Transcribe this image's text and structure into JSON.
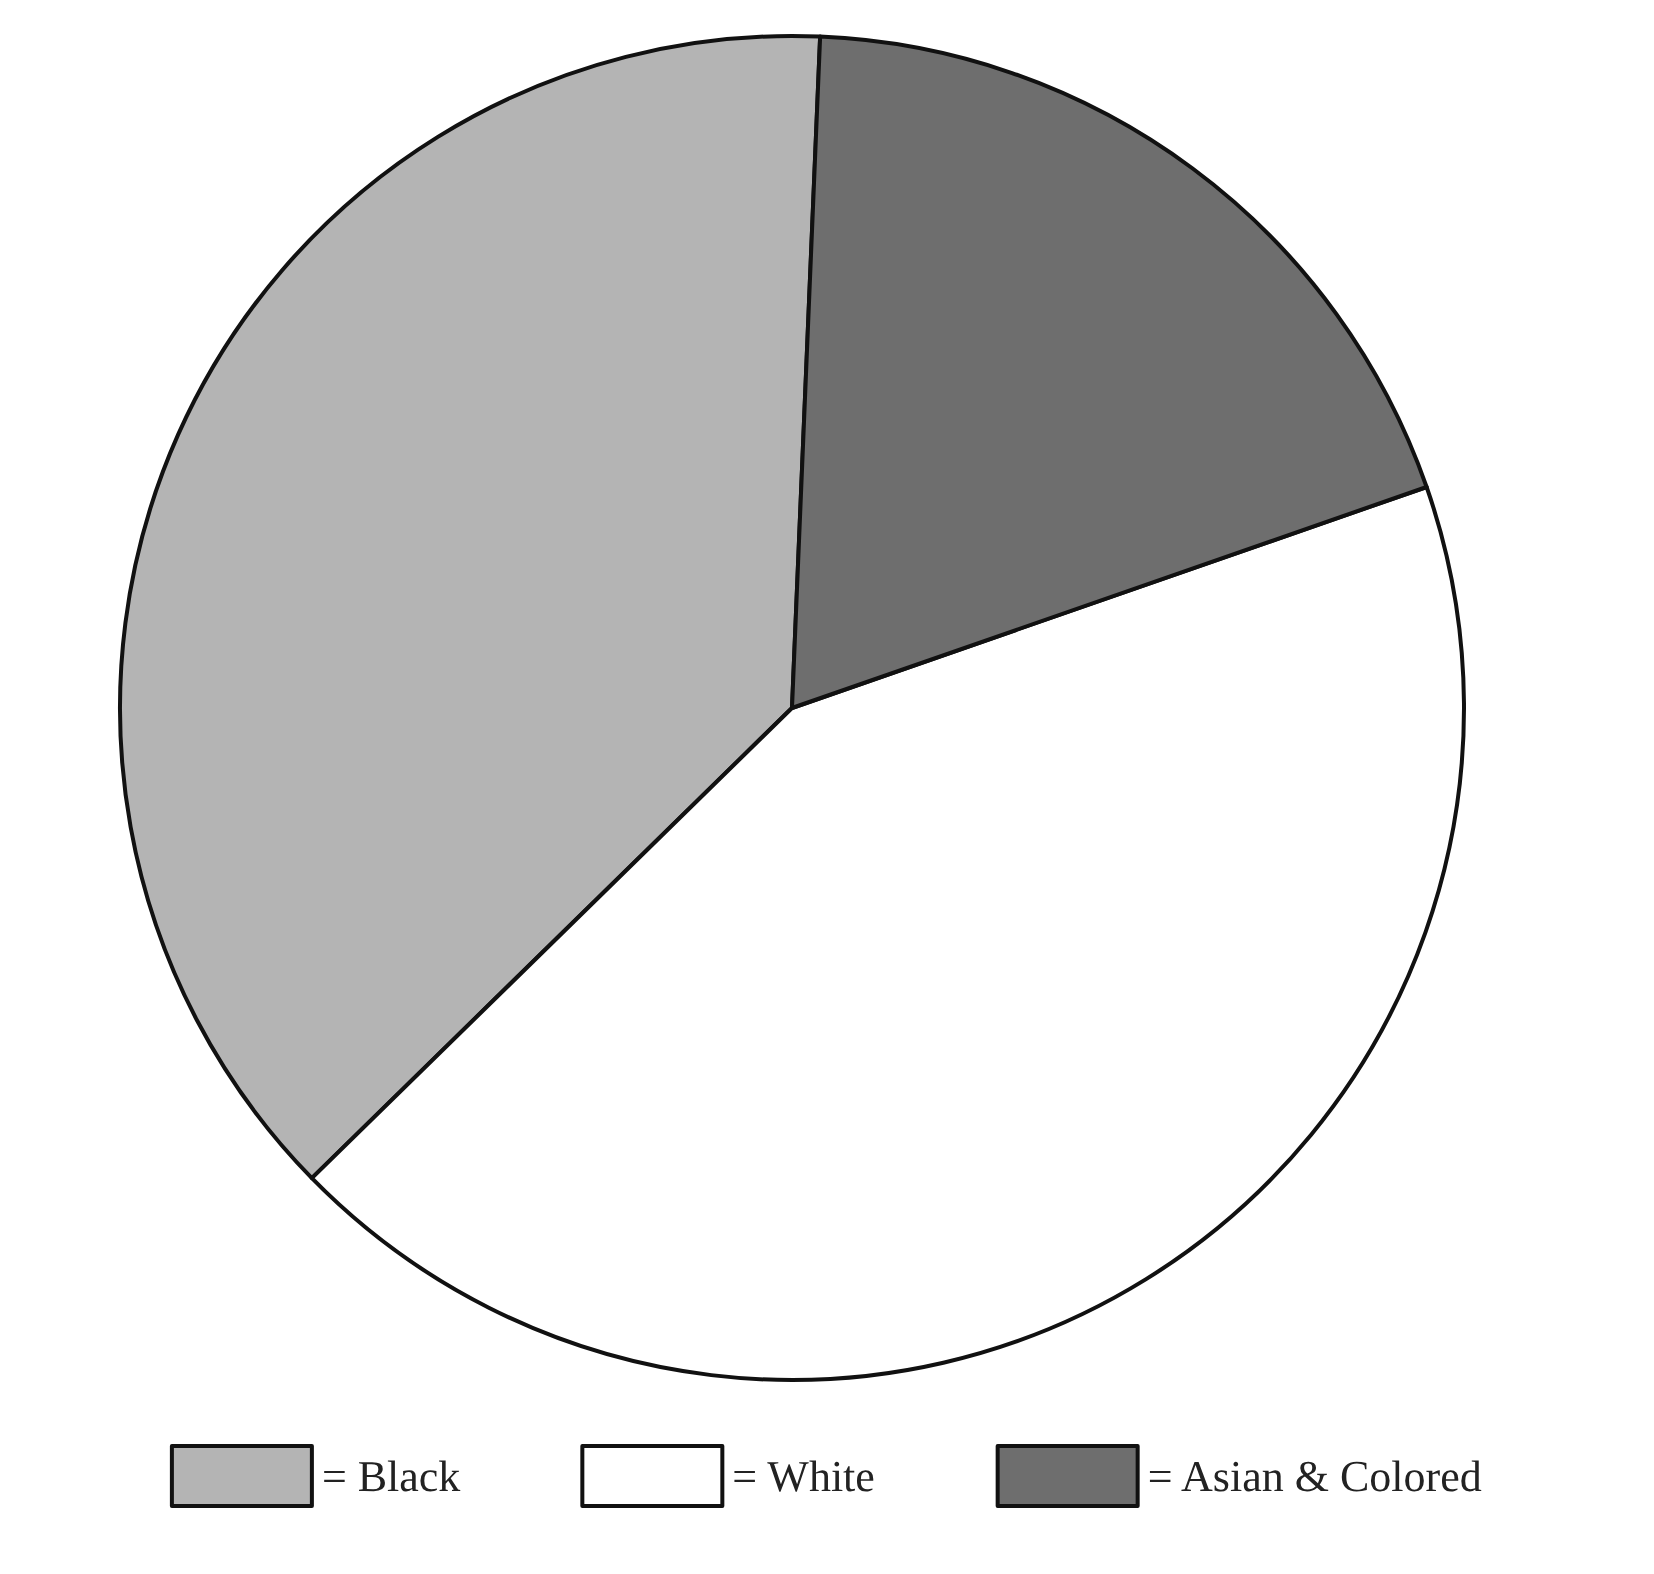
{
  "chart_data": {
    "type": "pie",
    "categories": [
      "= Black",
      "= White",
      "= Asian & Colored"
    ],
    "values": [
      38,
      43,
      19
    ],
    "colors": [
      "#b4b4b4",
      "#ffffff",
      "#6e6e6e"
    ],
    "legend": "bottom"
  }
}
